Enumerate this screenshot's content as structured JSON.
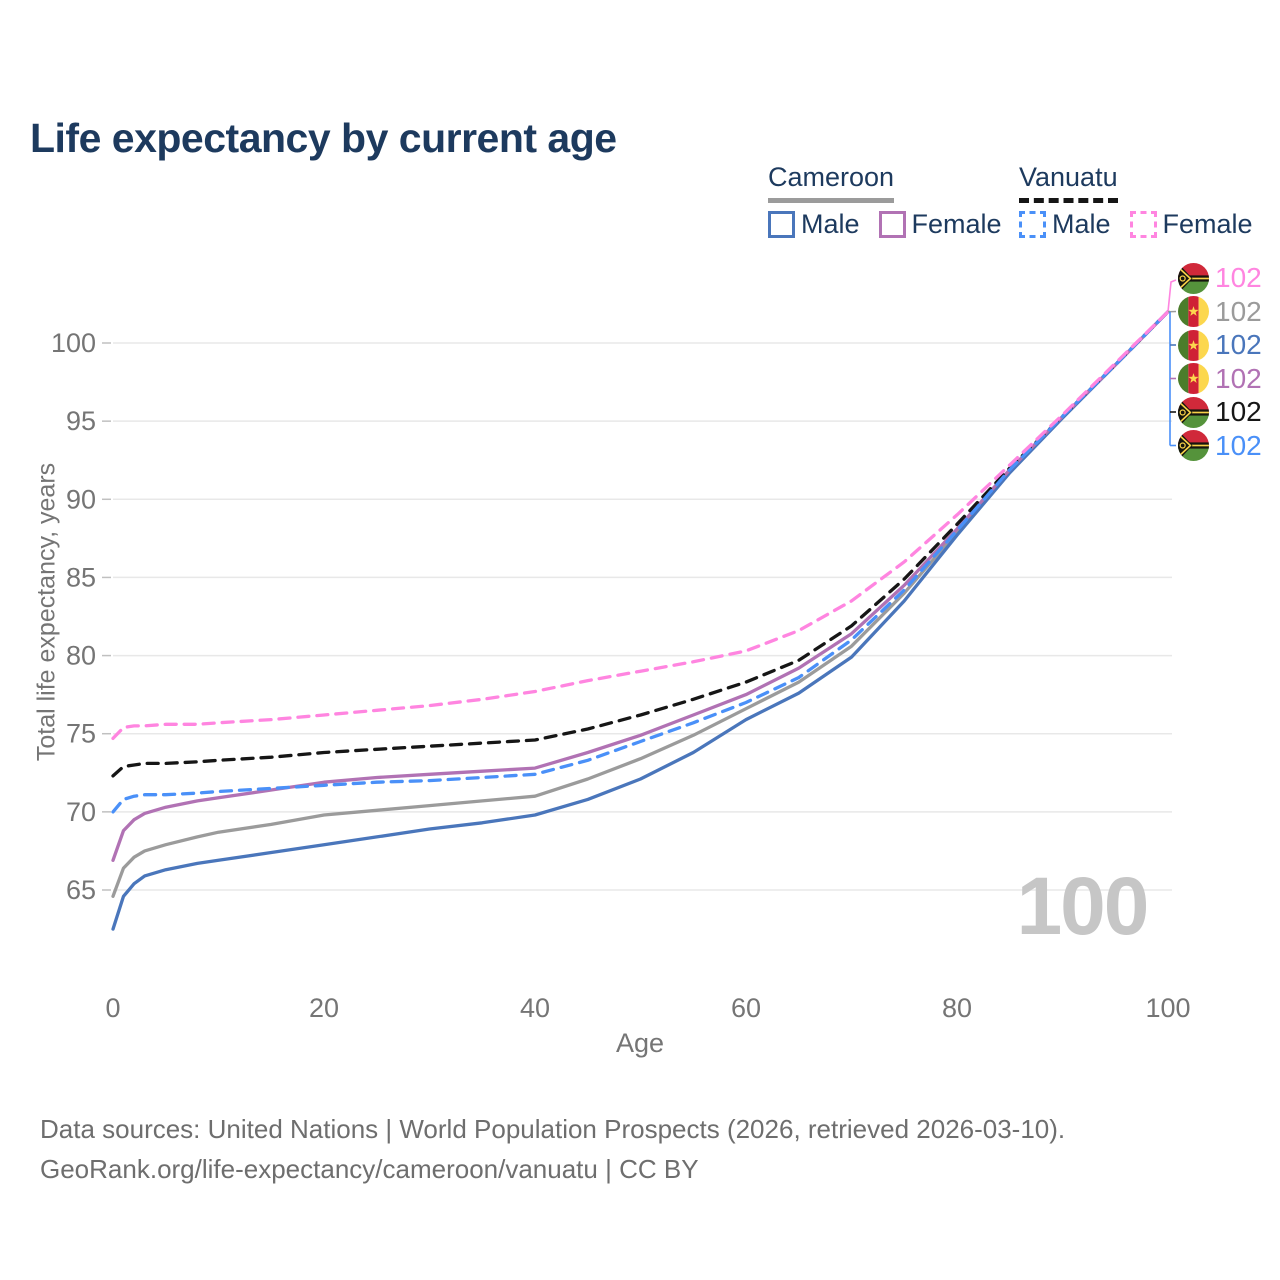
{
  "page": {
    "title": "Life expectancy by current age",
    "footer": {
      "line1": "Data sources: United Nations | World Population Prospects (2026, retrieved 2026-03-10).",
      "line2": "GeoRank.org/life-expectancy/cameroon/vanuatu | CC BY"
    }
  },
  "legend": {
    "groups": [
      {
        "country": "Cameroon",
        "line_style": "solid",
        "underline_color": "#9b9b9b",
        "items": [
          {
            "label": "Male",
            "color": "#4a76bb"
          },
          {
            "label": "Female",
            "color": "#b172b4"
          }
        ]
      },
      {
        "country": "Vanuatu",
        "line_style": "dashed",
        "underline_color": "#161616",
        "items": [
          {
            "label": "Male",
            "color": "#4a90f8"
          },
          {
            "label": "Female",
            "color": "#ff85e0"
          }
        ]
      }
    ]
  },
  "chart_data": {
    "type": "line",
    "title": "Life expectancy by current age",
    "xlabel": "Age",
    "ylabel": "Total life expectancy, years",
    "x_ticks": [
      0,
      20,
      40,
      60,
      80,
      100
    ],
    "y_ticks": [
      65,
      70,
      75,
      80,
      85,
      90,
      95,
      100
    ],
    "x_range": [
      0,
      100
    ],
    "y_range": [
      62,
      103
    ],
    "grid": "horizontal-only",
    "legend_position": "top-right",
    "age_counter": "100",
    "ages": [
      0,
      1,
      2,
      3,
      5,
      8,
      10,
      15,
      20,
      25,
      30,
      35,
      40,
      45,
      50,
      55,
      60,
      65,
      70,
      75,
      80,
      85,
      90,
      95,
      100
    ],
    "series": [
      {
        "name": "Cameroon",
        "country": "Cameroon",
        "sex": "Both",
        "color": "#9b9b9b",
        "dash": "solid",
        "values": [
          64.6,
          66.4,
          67.1,
          67.5,
          67.9,
          68.4,
          68.7,
          69.2,
          69.8,
          70.1,
          70.4,
          70.7,
          71.0,
          72.1,
          73.4,
          74.9,
          76.6,
          78.3,
          80.6,
          84.0,
          87.9,
          91.8,
          95.3,
          98.6,
          102
        ]
      },
      {
        "name": "Cameroon Male",
        "country": "Cameroon",
        "sex": "Male",
        "color": "#4a76bb",
        "dash": "solid",
        "values": [
          62.5,
          64.6,
          65.4,
          65.9,
          66.3,
          66.7,
          66.9,
          67.4,
          67.9,
          68.4,
          68.9,
          69.3,
          69.8,
          70.8,
          72.1,
          73.8,
          75.9,
          77.6,
          79.9,
          83.5,
          87.7,
          91.7,
          95.2,
          98.6,
          102
        ]
      },
      {
        "name": "Cameroon Female",
        "country": "Cameroon",
        "sex": "Female",
        "color": "#b172b4",
        "dash": "solid",
        "values": [
          66.9,
          68.8,
          69.5,
          69.9,
          70.3,
          70.7,
          70.9,
          71.4,
          71.9,
          72.2,
          72.4,
          72.6,
          72.8,
          73.8,
          74.9,
          76.2,
          77.5,
          79.2,
          81.4,
          84.5,
          88.1,
          91.9,
          95.3,
          98.6,
          102
        ]
      },
      {
        "name": "Vanuatu",
        "country": "Vanuatu",
        "sex": "Both",
        "color": "#161616",
        "dash": "dashed",
        "values": [
          72.3,
          72.9,
          73.0,
          73.1,
          73.1,
          73.2,
          73.3,
          73.5,
          73.8,
          74.0,
          74.2,
          74.4,
          74.6,
          75.3,
          76.2,
          77.2,
          78.3,
          79.7,
          81.9,
          84.9,
          88.4,
          92.0,
          95.3,
          98.6,
          102
        ]
      },
      {
        "name": "Vanuatu Male",
        "country": "Vanuatu",
        "sex": "Male",
        "color": "#4a90f8",
        "dash": "dashed",
        "values": [
          70.0,
          70.8,
          71.0,
          71.1,
          71.1,
          71.2,
          71.3,
          71.5,
          71.7,
          71.9,
          72.0,
          72.2,
          72.4,
          73.3,
          74.5,
          75.7,
          77.0,
          78.6,
          81.0,
          84.2,
          88.0,
          91.9,
          95.3,
          98.6,
          102
        ]
      },
      {
        "name": "Vanuatu Female",
        "country": "Vanuatu",
        "sex": "Female",
        "color": "#ff85e0",
        "dash": "dashed",
        "values": [
          74.7,
          75.4,
          75.5,
          75.5,
          75.6,
          75.6,
          75.7,
          75.9,
          76.2,
          76.5,
          76.8,
          77.2,
          77.7,
          78.4,
          79.0,
          79.6,
          80.3,
          81.6,
          83.5,
          86.0,
          89.0,
          92.2,
          95.4,
          98.7,
          102
        ]
      }
    ],
    "end_labels": [
      {
        "series": "Vanuatu Female",
        "flag": "vanuatu",
        "value": "102",
        "color": "#ff85e0"
      },
      {
        "series": "Cameroon",
        "flag": "cameroon",
        "value": "102",
        "color": "#9b9b9b"
      },
      {
        "series": "Cameroon Male",
        "flag": "cameroon",
        "value": "102",
        "color": "#4a76bb"
      },
      {
        "series": "Cameroon Female",
        "flag": "cameroon",
        "value": "102",
        "color": "#b172b4"
      },
      {
        "series": "Vanuatu",
        "flag": "vanuatu",
        "value": "102",
        "color": "#161616"
      },
      {
        "series": "Vanuatu Male",
        "flag": "vanuatu",
        "value": "102",
        "color": "#4a90f8"
      }
    ]
  }
}
